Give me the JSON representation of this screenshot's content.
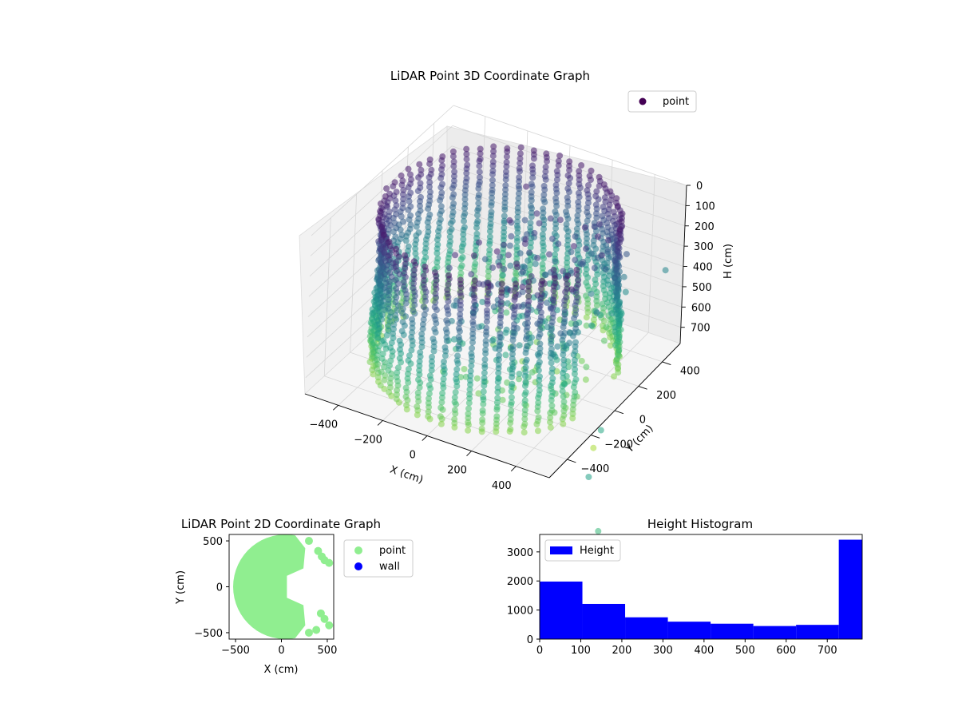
{
  "chart_data": [
    {
      "type": "scatter",
      "projection": "3d",
      "title": "LiDAR Point 3D Coordinate Graph",
      "xlabel": "X (cm)",
      "ylabel": "Y (cm)",
      "zlabel": "H (cm)",
      "x_ticks": [
        "−400",
        "−200",
        "0",
        "200",
        "400"
      ],
      "y_ticks": [
        "−400",
        "−200",
        "0",
        "200",
        "400"
      ],
      "z_ticks": [
        "0",
        "100",
        "200",
        "300",
        "400",
        "500",
        "600",
        "700"
      ],
      "xlim": [
        -550,
        550
      ],
      "ylim": [
        -550,
        550
      ],
      "zlim": [
        0,
        780
      ],
      "z_inverted": true,
      "colormap": "viridis",
      "legend": [
        {
          "label": "point",
          "color": "#440154"
        }
      ],
      "legend_position": "upper right",
      "grid": true,
      "series": [
        {
          "name": "point",
          "shape": "open cylindrical scan, radius ~520 cm, heights 0-780 cm, open toward +X, with inner structure",
          "radius": 520,
          "h_range": [
            0,
            780
          ],
          "sample_points": [
            {
              "x": 600,
              "y": 300,
              "h": 250
            },
            {
              "x": 620,
              "y": -250,
              "h": 700
            },
            {
              "x": 640,
              "y": -350,
              "h": 720
            },
            {
              "x": 700,
              "y": -500,
              "h": 750
            },
            {
              "x": 900,
              "y": -800,
              "h": 760
            }
          ]
        }
      ]
    },
    {
      "type": "scatter",
      "title": "LiDAR Point 2D Coordinate Graph",
      "xlabel": "X (cm)",
      "ylabel": "Y (cm)",
      "x_ticks": [
        "−500",
        "0",
        "500"
      ],
      "y_ticks": [
        "500",
        "0",
        "−500"
      ],
      "xlim": [
        -570,
        570
      ],
      "ylim": [
        -570,
        570
      ],
      "legend": [
        {
          "label": "point",
          "color": "#90ee90"
        },
        {
          "label": "wall",
          "color": "#0000ff"
        }
      ],
      "legend_position": "outside right",
      "series": [
        {
          "name": "point",
          "color": "#90ee90",
          "shape": "filled disc of radius ~560 cm, clipped for x > ~150 cm with wall fragments near x ~ 450"
        },
        {
          "name": "wall",
          "color": "#0000ff",
          "values": []
        }
      ]
    },
    {
      "type": "bar",
      "subtype": "histogram",
      "title": "Height Histogram",
      "x_ticks": [
        "0",
        "100",
        "200",
        "300",
        "400",
        "500",
        "600",
        "700"
      ],
      "y_ticks": [
        "0",
        "1000",
        "2000",
        "3000"
      ],
      "xlim": [
        0,
        785
      ],
      "ylim": [
        0,
        3600
      ],
      "bin_edges": [
        0,
        104,
        208,
        312,
        416,
        520,
        624,
        728,
        785
      ],
      "values": [
        1980,
        1210,
        750,
        600,
        530,
        450,
        490,
        3420
      ],
      "color": "#0000ff",
      "legend": [
        {
          "label": "Height",
          "color": "#0000ff"
        }
      ],
      "legend_position": "upper left"
    }
  ]
}
